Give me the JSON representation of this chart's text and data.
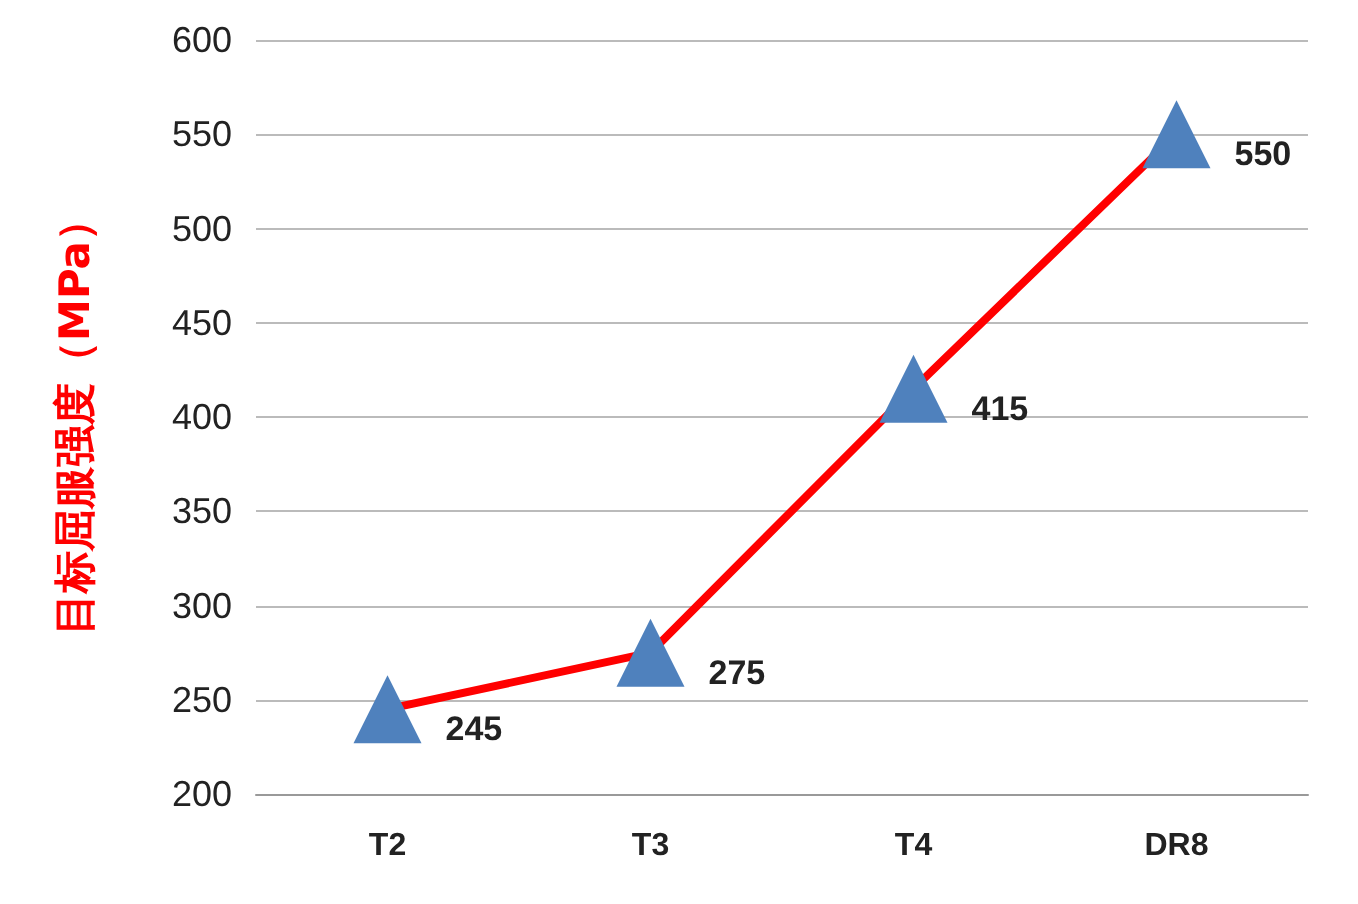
{
  "chart_data": {
    "type": "line",
    "ylabel": "目标屈服强度（MPa）",
    "categories": [
      "T2",
      "T3",
      "T4",
      "DR8"
    ],
    "series": [
      {
        "color": "#ff0000",
        "colors": [
          "#4f81bd",
          "#4f81bd",
          "#4f81bd",
          "#4f81bd"
        ],
        "values": [
          245,
          275,
          415,
          550
        ]
      }
    ],
    "marker": "triangle",
    "line_style": "solid",
    "data_labels": true,
    "grid": "y",
    "ylim": [
      200,
      600
    ],
    "yticks": [
      200,
      250,
      300,
      350,
      400,
      450,
      500,
      550,
      600
    ]
  }
}
